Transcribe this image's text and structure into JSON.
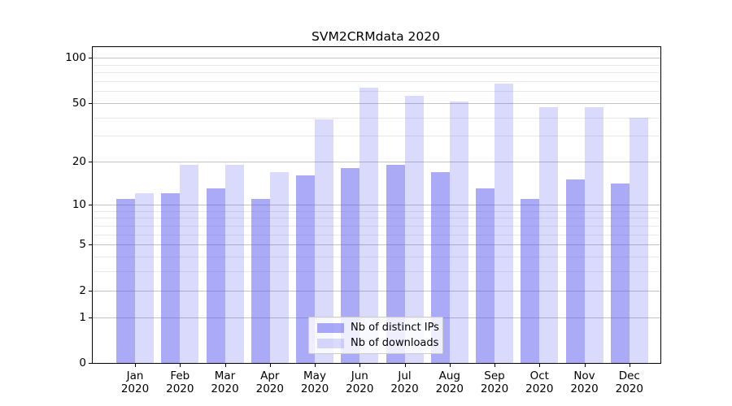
{
  "chart_data": {
    "type": "bar",
    "title": "SVM2CRMdata 2020",
    "categories": [
      "Jan",
      "Feb",
      "Mar",
      "Apr",
      "May",
      "Jun",
      "Jul",
      "Aug",
      "Sep",
      "Oct",
      "Nov",
      "Dec"
    ],
    "category_year": "2020",
    "series": [
      {
        "name": "Nb of distinct IPs",
        "values": [
          11,
          12,
          13,
          11,
          16,
          18,
          19,
          17,
          13,
          11,
          15,
          14
        ],
        "color": "rgba(85,85,240,0.5)"
      },
      {
        "name": "Nb of downloads",
        "values": [
          12,
          19,
          19,
          17,
          39,
          63,
          56,
          51,
          67,
          47,
          47,
          40
        ],
        "color": "rgba(85,85,240,0.22)"
      }
    ],
    "yscale": "log1p",
    "ytick_labels": [
      "100",
      "50",
      "20",
      "10",
      "5",
      "2",
      "1",
      "0"
    ],
    "ytick_values": [
      100,
      50,
      20,
      10,
      5,
      2,
      1,
      0
    ],
    "minor_ytick_values": [
      3,
      4,
      6,
      7,
      8,
      9,
      30,
      40,
      60,
      70,
      80,
      90
    ],
    "ylim": [
      0,
      117
    ],
    "grid": true,
    "legend_position": "lower center",
    "colors": {
      "bar_base": "#5555f0",
      "major_grid": "#c3c3c3",
      "minor_grid": "#e9e9e9",
      "axis": "#000000",
      "background": "#ffffff"
    }
  }
}
